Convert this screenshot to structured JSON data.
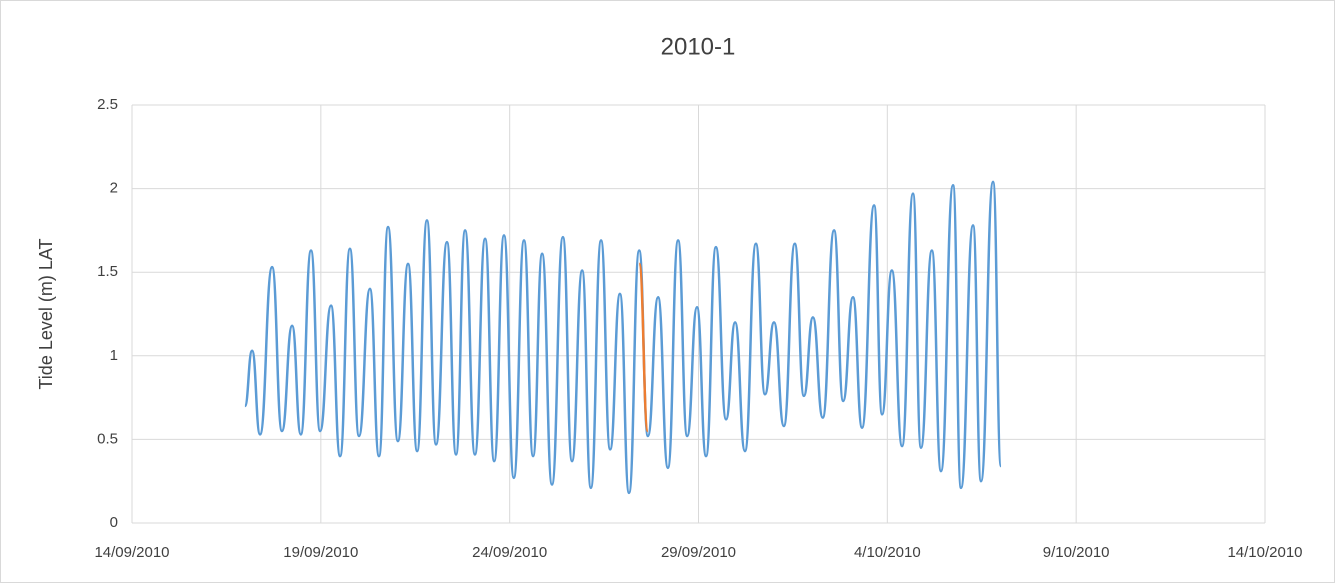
{
  "chart_data": {
    "type": "line",
    "title": "2010-1",
    "y_label": "Tide Level (m) LAT",
    "xlim": [
      40435,
      40465
    ],
    "xticks": [
      {
        "value": 40435,
        "label": "14/09/2010"
      },
      {
        "value": 40440,
        "label": "19/09/2010"
      },
      {
        "value": 40445,
        "label": "24/09/2010"
      },
      {
        "value": 40450,
        "label": "29/09/2010"
      },
      {
        "value": 40455,
        "label": "4/10/2010"
      },
      {
        "value": 40460,
        "label": "9/10/2010"
      },
      {
        "value": 40465,
        "label": "14/10/2010"
      }
    ],
    "ylim": [
      0,
      2.5
    ],
    "yticks": [
      0,
      0.5,
      1,
      1.5,
      2,
      2.5
    ],
    "grid": true,
    "series": [
      {
        "color": "#5b9bd5",
        "x": [
          40437.99,
          40438.18,
          40438.39,
          40438.71,
          40438.97,
          40439.24,
          40439.47,
          40439.74,
          40439.98,
          40440.27,
          40440.51,
          40440.77,
          40441.01,
          40441.3,
          40441.54,
          40441.78,
          40442.04,
          40442.31,
          40442.55,
          40442.81,
          40443.05,
          40443.34,
          40443.58,
          40443.82,
          40444.08,
          40444.35,
          40444.59,
          40444.85,
          40445.11,
          40445.38,
          40445.62,
          40445.86,
          40446.12,
          40446.41,
          40446.65,
          40446.92,
          40447.15,
          40447.42,
          40447.66,
          40447.92,
          40448.16,
          40448.43,
          40448.66,
          40448.93,
          40449.19,
          40449.46,
          40449.7,
          40449.96,
          40450.2,
          40450.46,
          40450.73,
          40450.97,
          40451.23,
          40451.52,
          40451.76,
          40452.0,
          40452.26,
          40452.55,
          40452.79,
          40453.03,
          40453.29,
          40453.59,
          40453.83,
          40454.09,
          40454.33,
          40454.65,
          40454.86,
          40455.12,
          40455.39,
          40455.68,
          40455.89,
          40456.18,
          40456.42,
          40456.74,
          40456.95,
          40457.27,
          40457.48,
          40457.8,
          40458.01
        ],
        "values": [
          0.7,
          1.03,
          0.53,
          1.53,
          0.55,
          1.18,
          0.53,
          1.63,
          0.55,
          1.3,
          0.4,
          1.64,
          0.52,
          1.4,
          0.4,
          1.77,
          0.49,
          1.55,
          0.43,
          1.81,
          0.47,
          1.68,
          0.41,
          1.75,
          0.41,
          1.7,
          0.37,
          1.72,
          0.27,
          1.69,
          0.4,
          1.61,
          0.23,
          1.71,
          0.37,
          1.51,
          0.21,
          1.69,
          0.44,
          1.37,
          0.18,
          1.63,
          0.52,
          1.35,
          0.33,
          1.69,
          0.52,
          1.29,
          0.4,
          1.65,
          0.62,
          1.2,
          0.43,
          1.67,
          0.77,
          1.2,
          0.58,
          1.67,
          0.76,
          1.23,
          0.63,
          1.75,
          0.73,
          1.35,
          0.57,
          1.9,
          0.65,
          1.51,
          0.46,
          1.97,
          0.45,
          1.63,
          0.31,
          2.02,
          0.21,
          1.78,
          0.25,
          2.04,
          0.34
        ]
      },
      {
        "color": "#ed7d31",
        "x": [
          40448.43,
          40448.66
        ],
        "values": [
          1.55,
          0.55
        ]
      }
    ]
  }
}
